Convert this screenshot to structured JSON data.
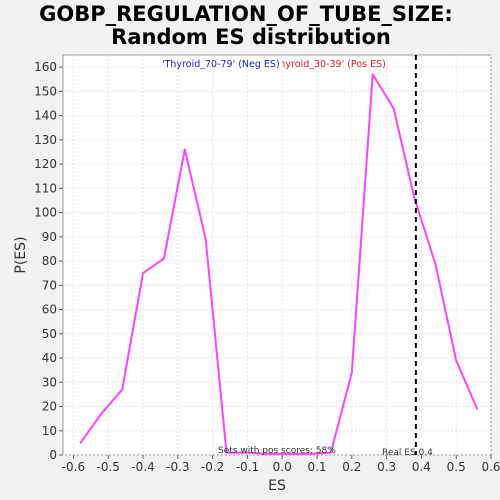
{
  "chart_data": {
    "type": "line",
    "title_line1": "GOBP_REGULATION_OF_TUBE_SIZE:",
    "title_line2": "Random ES distribution",
    "xlabel": "ES",
    "ylabel": "P(ES)",
    "xlim": [
      -0.63,
      0.6
    ],
    "ylim": [
      0,
      165
    ],
    "x_ticks": [
      -0.6,
      -0.5,
      -0.4,
      -0.3,
      -0.2,
      -0.1,
      0.0,
      0.1,
      0.2,
      0.3,
      0.4,
      0.5,
      0.6
    ],
    "x_tick_labels": [
      "-0.6",
      "-0.5",
      "-0.4",
      "-0.3",
      "-0.2",
      "-0.1",
      "0.0",
      "0.1",
      "0.2",
      "0.3",
      "0.4",
      "0.5",
      "0.6"
    ],
    "y_ticks": [
      0,
      10,
      20,
      30,
      40,
      50,
      60,
      70,
      80,
      90,
      100,
      110,
      120,
      130,
      140,
      150,
      160
    ],
    "y_tick_labels": [
      "0",
      "10",
      "20",
      "30",
      "40",
      "50",
      "60",
      "70",
      "80",
      "90",
      "100",
      "110",
      "120",
      "130",
      "140",
      "150",
      "160"
    ],
    "grid": true,
    "line_color": "#ff44ff",
    "series": [
      {
        "x": [
          -0.58,
          -0.52,
          -0.46,
          -0.4,
          -0.34,
          -0.28,
          -0.22,
          -0.16,
          -0.1,
          -0.04,
          0.02,
          0.08,
          0.14,
          0.2,
          0.26,
          0.32,
          0.38,
          0.44,
          0.5,
          0.56
        ],
        "y": [
          5,
          17,
          27,
          75,
          81,
          126,
          89,
          1,
          1,
          0.5,
          0.5,
          0.5,
          1,
          34,
          157,
          143,
          106,
          79,
          39,
          19
        ]
      }
    ],
    "real_es": 0.384,
    "legend_neg": "'Thyroid_70-79' (Neg ES)",
    "legend_pos": "'Thyroid_30-39' (Pos ES)",
    "legend_neg_color": "#2222cc",
    "legend_pos_color": "#dd2222",
    "annotation_pos_scores": "Sets with pos scores: 58%",
    "annotation_real_es": "Real ES 0.4"
  }
}
